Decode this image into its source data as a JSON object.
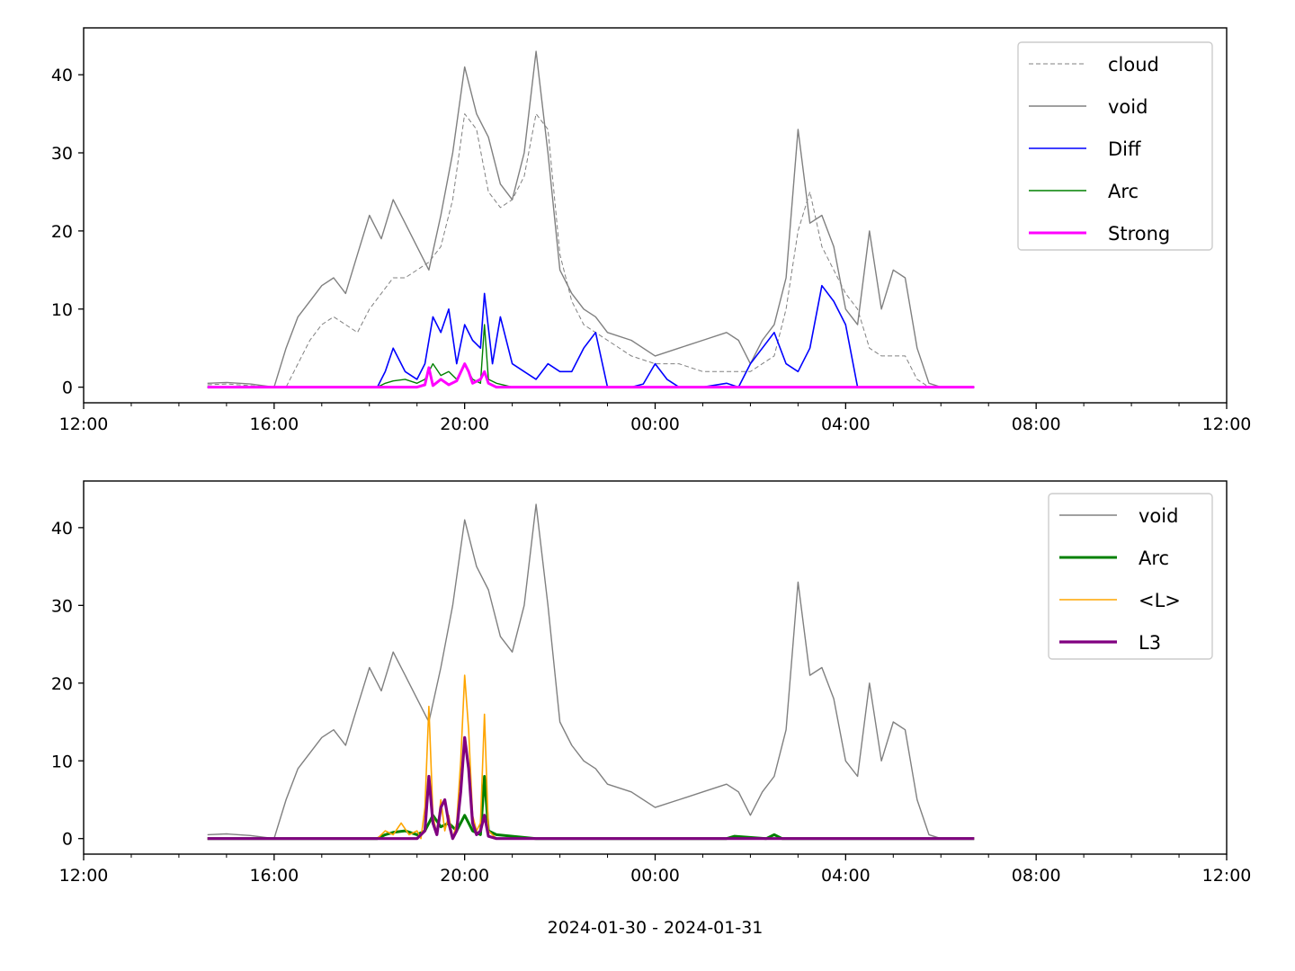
{
  "chart_data": [
    {
      "type": "line",
      "xlim": [
        "2024-01-30 12:00",
        "2024-01-31 12:00"
      ],
      "ylim": [
        -2,
        46
      ],
      "yticks": [
        0,
        10,
        20,
        30,
        40
      ],
      "xtick_labels": [
        "12:00",
        "16:00",
        "20:00",
        "00:00",
        "04:00",
        "08:00",
        "12:00"
      ],
      "xlabel": "",
      "legend_position": "upper-right",
      "series": [
        {
          "name": "cloud",
          "color": "#808080",
          "style": "dashed",
          "width": 1,
          "x": [
            "14:36",
            "15:00",
            "15:30",
            "16:00",
            "16:15",
            "16:30",
            "16:45",
            "17:00",
            "17:15",
            "17:30",
            "17:45",
            "18:00",
            "18:15",
            "18:30",
            "18:45",
            "19:00",
            "19:15",
            "19:30",
            "19:45",
            "20:00",
            "20:15",
            "20:30",
            "20:45",
            "21:00",
            "21:15",
            "21:30",
            "21:45",
            "22:00",
            "22:15",
            "22:30",
            "22:45",
            "23:00",
            "23:30",
            "00:00",
            "00:30",
            "01:00",
            "01:30",
            "01:45",
            "02:00",
            "02:15",
            "02:30",
            "02:45",
            "03:00",
            "03:15",
            "03:30",
            "03:45",
            "04:00",
            "04:15",
            "04:30",
            "04:45",
            "05:00",
            "05:15",
            "05:30",
            "05:45",
            "06:00",
            "06:42"
          ],
          "y": [
            0.3,
            0.4,
            0.2,
            0,
            0,
            3,
            6,
            8,
            9,
            8,
            7,
            10,
            12,
            14,
            14,
            15,
            16,
            18,
            24,
            35,
            33,
            25,
            23,
            24,
            27,
            35,
            33,
            17,
            11,
            8,
            7,
            6,
            4,
            3,
            3,
            2,
            2,
            2,
            2,
            3,
            4,
            10,
            20,
            25,
            18,
            15,
            12,
            10,
            5,
            4,
            4,
            4,
            1,
            0,
            0,
            0
          ]
        },
        {
          "name": "void",
          "color": "#808080",
          "style": "solid",
          "width": 1.4,
          "x": [
            "14:36",
            "15:00",
            "15:30",
            "16:00",
            "16:15",
            "16:30",
            "16:45",
            "17:00",
            "17:15",
            "17:30",
            "17:45",
            "18:00",
            "18:15",
            "18:30",
            "18:45",
            "19:00",
            "19:15",
            "19:30",
            "19:45",
            "20:00",
            "20:15",
            "20:30",
            "20:45",
            "21:00",
            "21:15",
            "21:30",
            "21:45",
            "22:00",
            "22:15",
            "22:30",
            "22:45",
            "23:00",
            "23:30",
            "00:00",
            "00:30",
            "01:00",
            "01:30",
            "01:45",
            "02:00",
            "02:15",
            "02:30",
            "02:45",
            "03:00",
            "03:15",
            "03:30",
            "03:45",
            "04:00",
            "04:15",
            "04:30",
            "04:45",
            "05:00",
            "05:15",
            "05:30",
            "05:45",
            "06:00",
            "06:42"
          ],
          "y": [
            0.5,
            0.6,
            0.4,
            0,
            5,
            9,
            11,
            13,
            14,
            12,
            17,
            22,
            19,
            24,
            21,
            18,
            15,
            22,
            30,
            41,
            35,
            32,
            26,
            24,
            30,
            43,
            30,
            15,
            12,
            10,
            9,
            7,
            6,
            4,
            5,
            6,
            7,
            6,
            3,
            6,
            8,
            14,
            33,
            21,
            22,
            18,
            10,
            8,
            20,
            10,
            15,
            14,
            5,
            0.5,
            0,
            0
          ]
        },
        {
          "name": "Diff",
          "color": "#0000ff",
          "style": "solid",
          "width": 1.6,
          "x": [
            "14:36",
            "18:10",
            "18:20",
            "18:30",
            "18:45",
            "19:00",
            "19:10",
            "19:20",
            "19:30",
            "19:40",
            "19:50",
            "20:00",
            "20:10",
            "20:20",
            "20:25",
            "20:35",
            "20:45",
            "21:00",
            "21:15",
            "21:30",
            "21:45",
            "22:00",
            "22:15",
            "22:30",
            "22:45",
            "23:00",
            "23:30",
            "23:45",
            "00:00",
            "00:15",
            "00:30",
            "01:00",
            "01:30",
            "01:45",
            "02:00",
            "02:15",
            "02:30",
            "02:45",
            "03:00",
            "03:15",
            "03:30",
            "03:45",
            "04:00",
            "04:15",
            "06:42"
          ],
          "y": [
            0,
            0,
            2,
            5,
            2,
            1,
            3,
            9,
            7,
            10,
            3,
            8,
            6,
            5,
            12,
            3,
            9,
            3,
            2,
            1,
            3,
            2,
            2,
            5,
            7,
            0,
            0,
            0.4,
            3,
            1,
            0,
            0,
            0.5,
            0,
            3,
            5,
            7,
            3,
            2,
            5,
            13,
            11,
            8,
            0,
            0
          ]
        },
        {
          "name": "Arc",
          "color": "#008000",
          "style": "solid",
          "width": 1.4,
          "x": [
            "14:36",
            "18:10",
            "18:20",
            "18:30",
            "18:45",
            "19:00",
            "19:10",
            "19:20",
            "19:30",
            "19:40",
            "19:50",
            "20:00",
            "20:10",
            "20:20",
            "20:25",
            "20:30",
            "20:40",
            "21:00",
            "21:30",
            "06:42"
          ],
          "y": [
            0,
            0,
            0.5,
            0.8,
            1,
            0.5,
            1,
            3,
            1.5,
            2,
            1,
            3,
            1,
            0.5,
            8,
            1,
            0.5,
            0,
            0,
            0
          ]
        },
        {
          "name": "Strong",
          "color": "#ff00ff",
          "style": "solid",
          "width": 3,
          "x": [
            "14:36",
            "19:00",
            "19:10",
            "19:15",
            "19:20",
            "19:30",
            "19:40",
            "19:50",
            "20:00",
            "20:05",
            "20:10",
            "20:20",
            "20:25",
            "20:30",
            "20:40",
            "06:42"
          ],
          "y": [
            0,
            0,
            0.3,
            2.5,
            0.2,
            1,
            0.3,
            0.8,
            3,
            2,
            0.5,
            1,
            2,
            0.5,
            0,
            0
          ]
        }
      ]
    },
    {
      "type": "line",
      "xlim": [
        "2024-01-30 12:00",
        "2024-01-31 12:00"
      ],
      "ylim": [
        -2,
        46
      ],
      "yticks": [
        0,
        10,
        20,
        30,
        40
      ],
      "xtick_labels": [
        "12:00",
        "16:00",
        "20:00",
        "00:00",
        "04:00",
        "08:00",
        "12:00"
      ],
      "xlabel": "2024-01-30 - 2024-01-31",
      "legend_position": "upper-right",
      "series": [
        {
          "name": "void",
          "color": "#808080",
          "style": "solid",
          "width": 1.4,
          "x": [
            "14:36",
            "15:00",
            "15:30",
            "16:00",
            "16:15",
            "16:30",
            "16:45",
            "17:00",
            "17:15",
            "17:30",
            "17:45",
            "18:00",
            "18:15",
            "18:30",
            "18:45",
            "19:00",
            "19:15",
            "19:30",
            "19:45",
            "20:00",
            "20:15",
            "20:30",
            "20:45",
            "21:00",
            "21:15",
            "21:30",
            "21:45",
            "22:00",
            "22:15",
            "22:30",
            "22:45",
            "23:00",
            "23:30",
            "00:00",
            "00:30",
            "01:00",
            "01:30",
            "01:45",
            "02:00",
            "02:15",
            "02:30",
            "02:45",
            "03:00",
            "03:15",
            "03:30",
            "03:45",
            "04:00",
            "04:15",
            "04:30",
            "04:45",
            "05:00",
            "05:15",
            "05:30",
            "05:45",
            "06:00",
            "06:42"
          ],
          "y": [
            0.5,
            0.6,
            0.4,
            0,
            5,
            9,
            11,
            13,
            14,
            12,
            17,
            22,
            19,
            24,
            21,
            18,
            15,
            22,
            30,
            41,
            35,
            32,
            26,
            24,
            30,
            43,
            30,
            15,
            12,
            10,
            9,
            7,
            6,
            4,
            5,
            6,
            7,
            6,
            3,
            6,
            8,
            14,
            33,
            21,
            22,
            18,
            10,
            8,
            20,
            10,
            15,
            14,
            5,
            0.5,
            0,
            0
          ]
        },
        {
          "name": "Arc",
          "color": "#008000",
          "style": "solid",
          "width": 3,
          "x": [
            "14:36",
            "18:10",
            "18:20",
            "18:30",
            "18:45",
            "19:00",
            "19:10",
            "19:20",
            "19:30",
            "19:40",
            "19:50",
            "20:00",
            "20:10",
            "20:20",
            "20:25",
            "20:30",
            "20:40",
            "21:00",
            "21:30",
            "01:30",
            "01:40",
            "02:20",
            "02:30",
            "02:40",
            "06:42"
          ],
          "y": [
            0,
            0,
            0.5,
            0.8,
            1,
            0.5,
            1,
            3,
            1.5,
            2,
            1,
            3,
            1,
            0.5,
            8,
            1,
            0.5,
            0.3,
            0,
            0,
            0.3,
            0,
            0.5,
            0,
            0
          ]
        },
        {
          "name": "<L>",
          "color": "#ffa500",
          "style": "solid",
          "width": 1.6,
          "x": [
            "14:36",
            "18:10",
            "18:20",
            "18:30",
            "18:40",
            "18:50",
            "19:00",
            "19:05",
            "19:10",
            "19:15",
            "19:20",
            "19:25",
            "19:30",
            "19:35",
            "19:40",
            "19:45",
            "19:50",
            "19:55",
            "20:00",
            "20:05",
            "20:10",
            "20:15",
            "20:20",
            "20:25",
            "20:30",
            "20:40",
            "21:00",
            "06:42"
          ],
          "y": [
            0,
            0,
            1,
            0.5,
            2,
            0.5,
            1,
            0,
            4,
            17,
            3,
            0.5,
            5,
            1,
            3,
            0,
            2,
            10,
            21,
            14,
            3,
            1,
            2,
            16,
            1,
            0,
            0,
            0
          ]
        },
        {
          "name": "L3",
          "color": "#800080",
          "style": "solid",
          "width": 3.2,
          "x": [
            "14:36",
            "19:00",
            "19:10",
            "19:15",
            "19:20",
            "19:25",
            "19:30",
            "19:35",
            "19:40",
            "19:45",
            "19:50",
            "19:55",
            "20:00",
            "20:05",
            "20:10",
            "20:15",
            "20:20",
            "20:25",
            "20:30",
            "20:40",
            "06:42"
          ],
          "y": [
            0,
            0,
            1,
            8,
            2,
            0.5,
            4,
            5,
            2,
            0,
            1,
            6,
            13,
            9,
            2,
            0.5,
            1,
            3,
            0.3,
            0,
            0
          ]
        }
      ]
    }
  ]
}
